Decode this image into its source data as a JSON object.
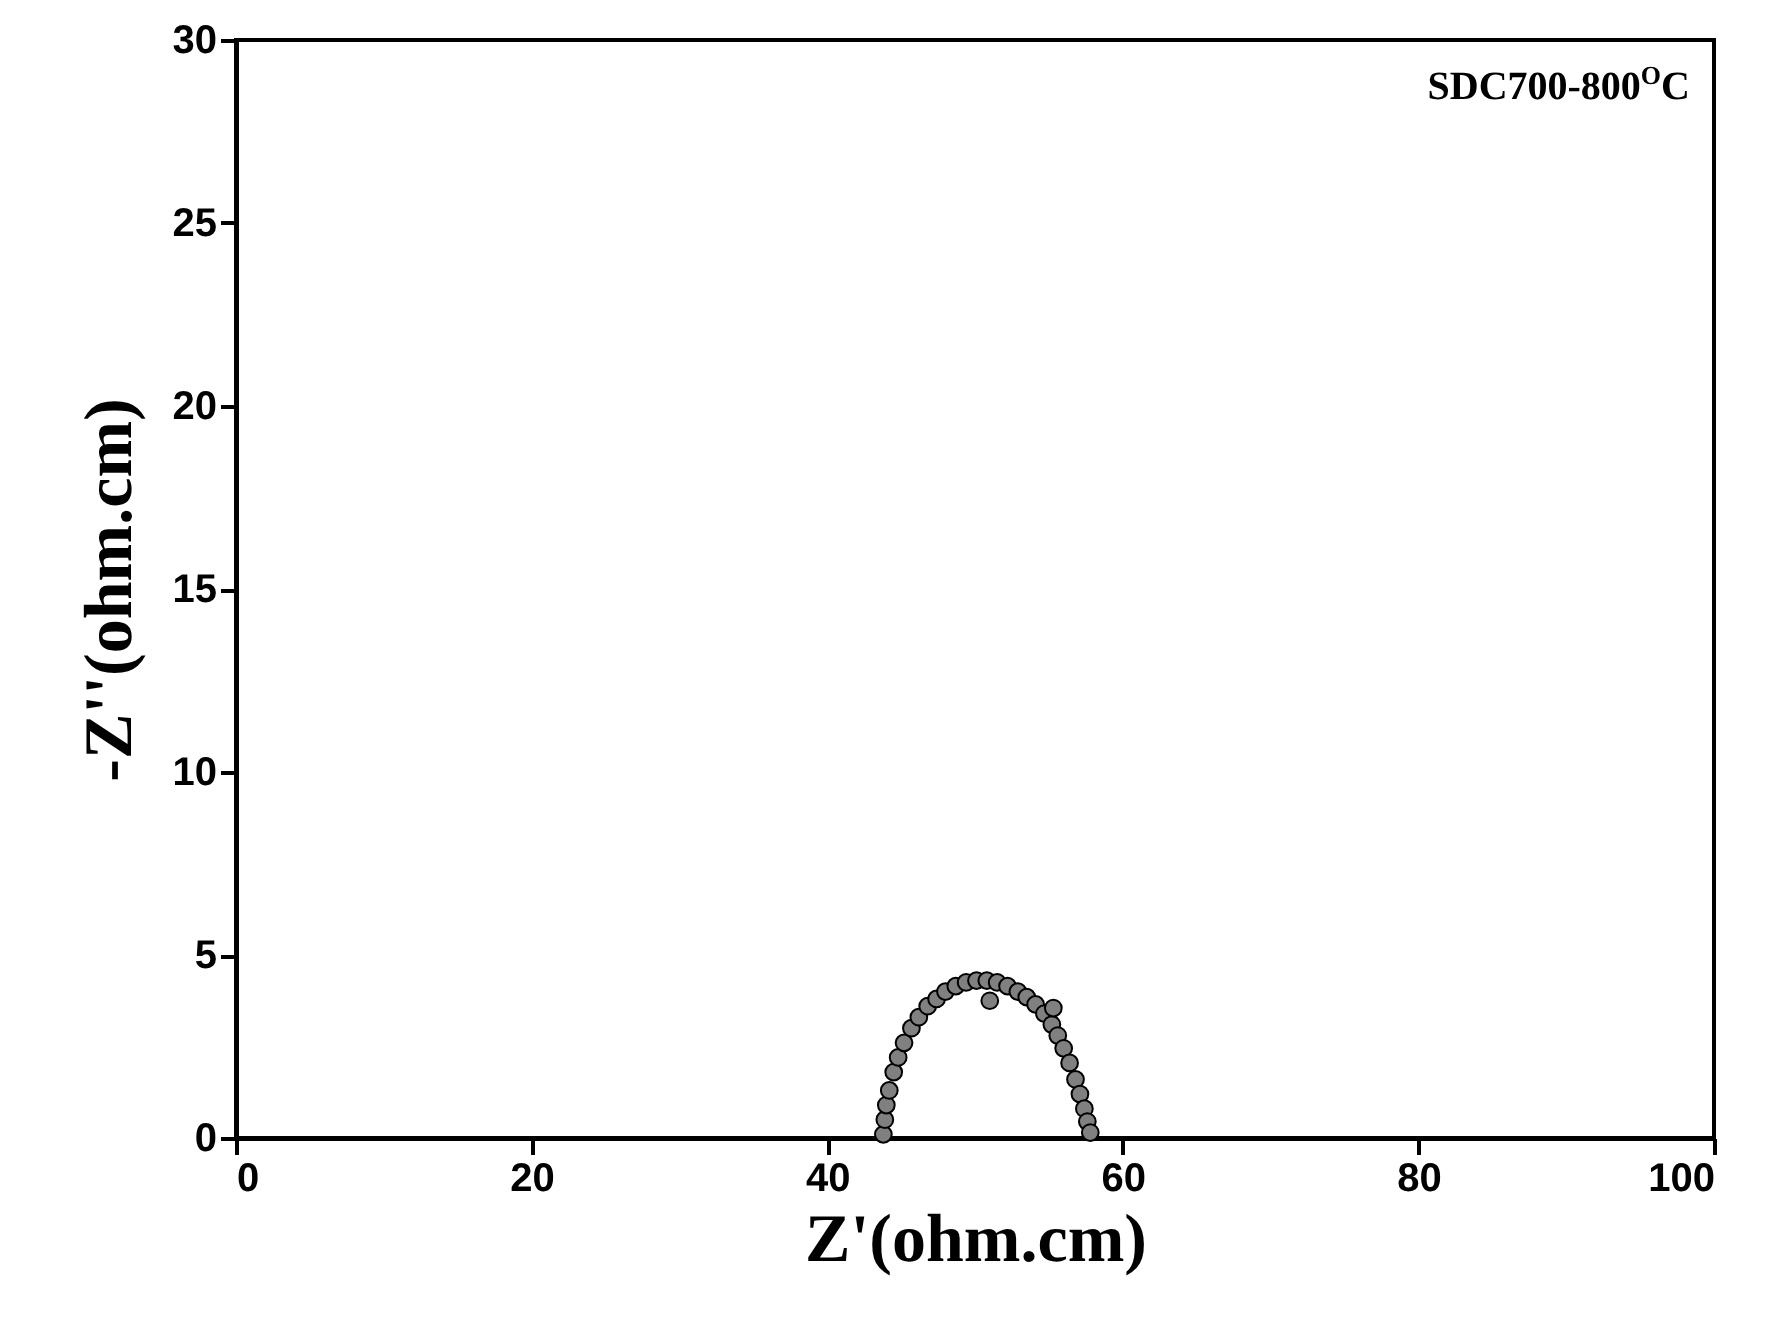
{
  "chart_data": {
    "type": "scatter",
    "xlabel": "Z'(ohm.cm)",
    "ylabel": "-Z''(ohm.cm)",
    "annotations": [
      "SDC700-800$^{O}$C"
    ],
    "xlim": [
      0,
      100
    ],
    "xticks": [
      0,
      20,
      40,
      60,
      80,
      100
    ],
    "ylim": [
      0,
      30
    ],
    "yticks": [
      0,
      5,
      10,
      15,
      20,
      25,
      30
    ],
    "grid": false,
    "marker": "circle",
    "series": [
      {
        "color": "#808080",
        "x": [
          43.8,
          43.9,
          44.0,
          44.2,
          44.5,
          44.8,
          45.2,
          45.7,
          46.2,
          46.8,
          47.4,
          48.0,
          48.7,
          49.4,
          50.1,
          50.8,
          51.5,
          52.2,
          52.9,
          53.5,
          54.1,
          54.7,
          55.2,
          55.6,
          56.0,
          56.4,
          56.8,
          57.1,
          57.4,
          57.6,
          57.8,
          51.0,
          55.3
        ],
        "values": [
          0.1,
          0.5,
          0.9,
          1.3,
          1.8,
          2.2,
          2.6,
          3.0,
          3.3,
          3.6,
          3.8,
          4.0,
          4.15,
          4.25,
          4.3,
          4.3,
          4.25,
          4.15,
          4.0,
          3.85,
          3.65,
          3.4,
          3.1,
          2.8,
          2.45,
          2.05,
          1.6,
          1.2,
          0.8,
          0.45,
          0.15,
          3.75,
          3.55
        ]
      }
    ]
  }
}
